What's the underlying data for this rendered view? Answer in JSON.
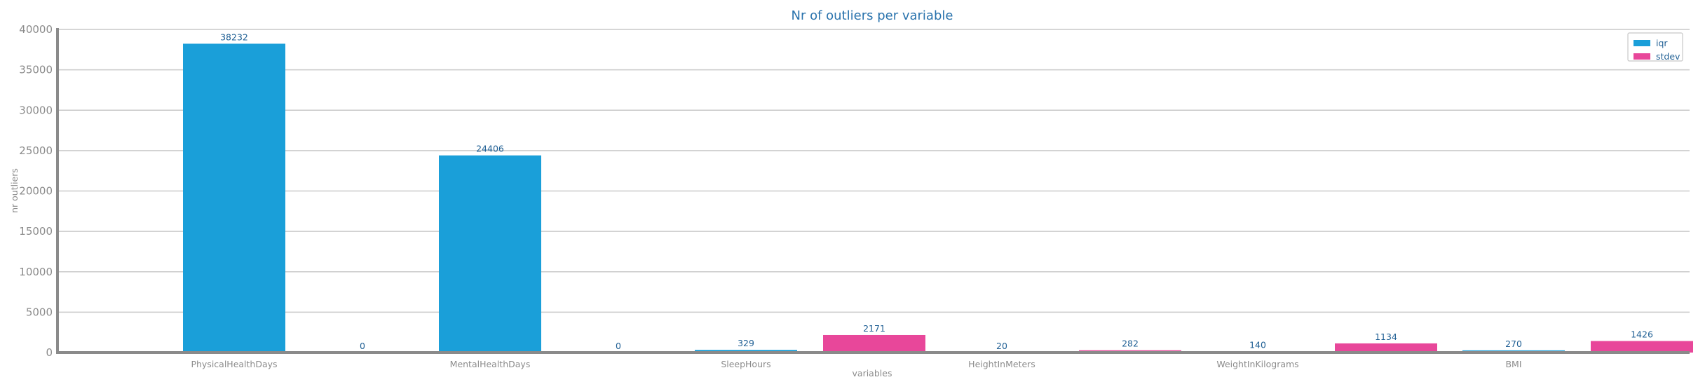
{
  "chart_data": {
    "type": "bar",
    "title": "Nr of outliers per variable",
    "xlabel": "variables",
    "ylabel": "nr outliers",
    "categories": [
      "PhysicalHealthDays",
      "MentalHealthDays",
      "SleepHours",
      "HeightInMeters",
      "WeightInKilograms",
      "BMI"
    ],
    "series": [
      {
        "name": "iqr",
        "values": [
          38232,
          24406,
          329,
          20,
          140,
          270
        ],
        "color": "#1a9fd9"
      },
      {
        "name": "stdev",
        "values": [
          0,
          0,
          2171,
          282,
          1134,
          1426
        ],
        "color": "#e8479a"
      }
    ],
    "ylim": [
      0,
      40000
    ],
    "yticks": [
      0,
      5000,
      10000,
      15000,
      20000,
      25000,
      30000,
      35000,
      40000
    ],
    "grid": true,
    "legend_position": "top-right"
  }
}
